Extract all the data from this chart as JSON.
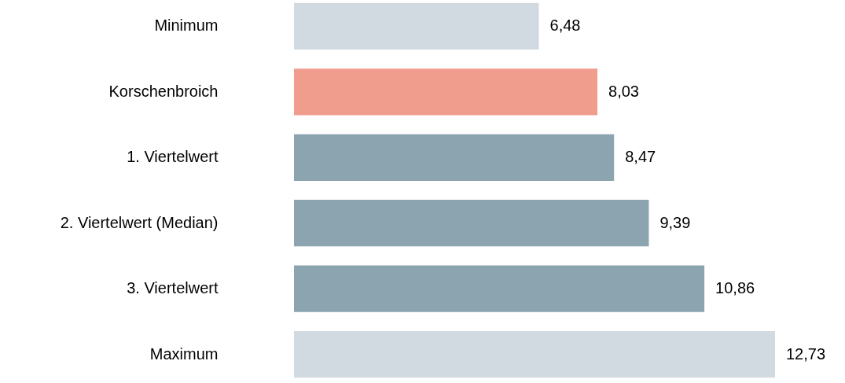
{
  "chart_data": {
    "type": "bar",
    "orientation": "horizontal",
    "categories": [
      "Minimum",
      "Korschenbroich",
      "1. Viertelwert",
      "2. Viertelwert (Median)",
      "3. Viertelwert",
      "Maximum"
    ],
    "values": [
      6.48,
      8.03,
      8.47,
      9.39,
      10.86,
      12.73
    ],
    "colors": [
      "#d1dae0",
      "#f09d8d",
      "#8ca3b0",
      "#8ca3b0",
      "#8ca3b0",
      "#d1dae0"
    ],
    "value_labels": [
      "6,48",
      "8,03",
      "8,47",
      "9,39",
      "10,86",
      "12,73"
    ],
    "xlim": [
      0,
      12.73
    ],
    "tick_labels": "y"
  }
}
